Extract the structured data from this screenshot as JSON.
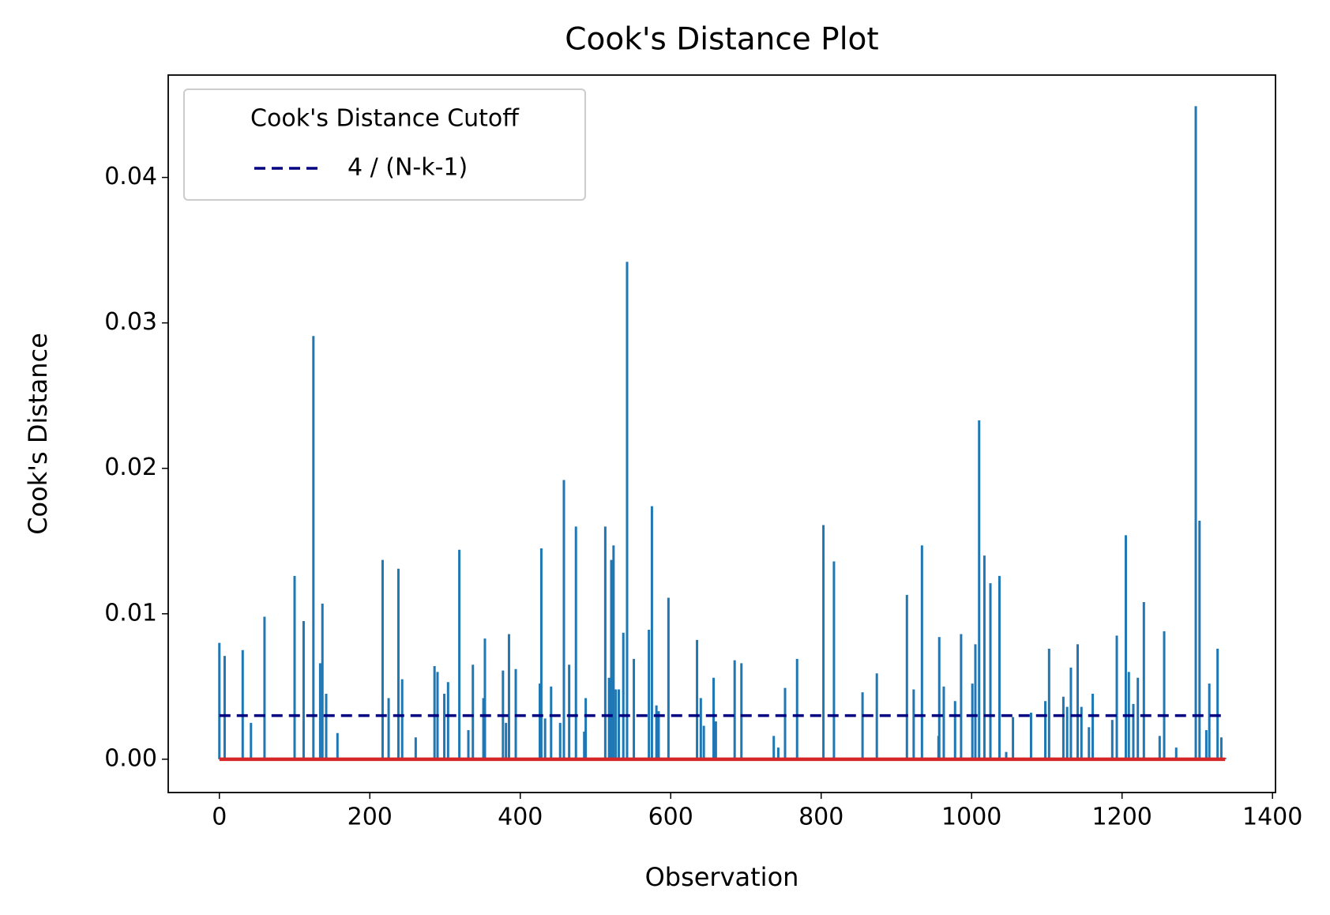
{
  "chart_data": {
    "type": "stem",
    "title": "Cook's Distance Plot",
    "x_label": "Observation",
    "y_label": "Cook's Distance",
    "legend_title": "Cook's Distance Cutoff",
    "legend_position": "upper left",
    "baseline": 0,
    "baseline_color": "#d62728",
    "xlim": [
      -68,
      1404
    ],
    "ylim": [
      -0.00229,
      0.04704
    ],
    "xticks": [
      0,
      200,
      400,
      600,
      800,
      1000,
      1200,
      1400
    ],
    "yticks": [
      {
        "value": 0,
        "label": "0.00"
      },
      {
        "value": 0.01,
        "label": "0.01"
      },
      {
        "value": 0.02,
        "label": "0.02"
      },
      {
        "value": 0.03,
        "label": "0.03"
      },
      {
        "value": 0.04,
        "label": "0.04"
      }
    ],
    "series": [
      {
        "color": "#1f77b4",
        "kind": "stem",
        "x": [
          0,
          7,
          31,
          42,
          60,
          100,
          112,
          125,
          134,
          137,
          142,
          157,
          217,
          225,
          238,
          243,
          261,
          286,
          290,
          299,
          304,
          319,
          331,
          337,
          351,
          353,
          377,
          381,
          385,
          394,
          426,
          428,
          433,
          441,
          453,
          458,
          465,
          474,
          485,
          487,
          513,
          518,
          521,
          524,
          527,
          531,
          537,
          542,
          551,
          571,
          575,
          581,
          584,
          597,
          635,
          640,
          644,
          657,
          660,
          685,
          694,
          737,
          743,
          752,
          768,
          803,
          817,
          855,
          874,
          914,
          923,
          934,
          956,
          957,
          963,
          978,
          986,
          1001,
          1005,
          1010,
          1017,
          1025,
          1037,
          1046,
          1055,
          1079,
          1098,
          1103,
          1122,
          1127,
          1132,
          1141,
          1146,
          1156,
          1161,
          1187,
          1193,
          1205,
          1209,
          1215,
          1221,
          1229,
          1250,
          1256,
          1272,
          1298,
          1303,
          1312,
          1316,
          1327,
          1332,
          1337
        ],
        "values": [
          0.008,
          0.0071,
          0.0075,
          0.0025,
          0.0098,
          0.0126,
          0.0095,
          0.0291,
          0.0066,
          0.0107,
          0.0045,
          0.0018,
          0.0137,
          0.0042,
          0.0131,
          0.0055,
          0.0015,
          0.0064,
          0.006,
          0.0045,
          0.0053,
          0.0144,
          0.002,
          0.0065,
          0.0042,
          0.0083,
          0.0061,
          0.0025,
          0.0086,
          0.0062,
          0.0052,
          0.0145,
          0.0028,
          0.005,
          0.0025,
          0.0192,
          0.0065,
          0.016,
          0.0019,
          0.0042,
          0.016,
          0.0056,
          0.0137,
          0.0147,
          0.0048,
          0.0048,
          0.0087,
          0.0342,
          0.0069,
          0.0089,
          0.0174,
          0.0037,
          0.0033,
          0.0111,
          0.0082,
          0.0042,
          0.0023,
          0.0056,
          0.0026,
          0.0068,
          0.0066,
          0.0016,
          0.0008,
          0.0049,
          0.0069,
          0.0161,
          0.0136,
          0.0046,
          0.0059,
          0.0113,
          0.0048,
          0.0147,
          0.0016,
          0.0084,
          0.005,
          0.004,
          0.0086,
          0.0052,
          0.0079,
          0.0233,
          0.014,
          0.0121,
          0.0126,
          0.0005,
          0.0029,
          0.0032,
          0.004,
          0.0076,
          0.0043,
          0.0036,
          0.0063,
          0.0079,
          0.0036,
          0.0022,
          0.0045,
          0.0027,
          0.0085,
          0.0154,
          0.006,
          0.0038,
          0.0056,
          0.0108,
          0.0016,
          0.0088,
          0.0008,
          0.0449,
          0.0164,
          0.002,
          0.0052,
          0.0076,
          0.0015,
          0.0001
        ]
      },
      {
        "name": "4 / (N-k-1)",
        "color": "#000080",
        "kind": "dashed-line",
        "x": [
          0,
          1338
        ],
        "values": [
          0.003,
          0.003
        ]
      }
    ]
  }
}
